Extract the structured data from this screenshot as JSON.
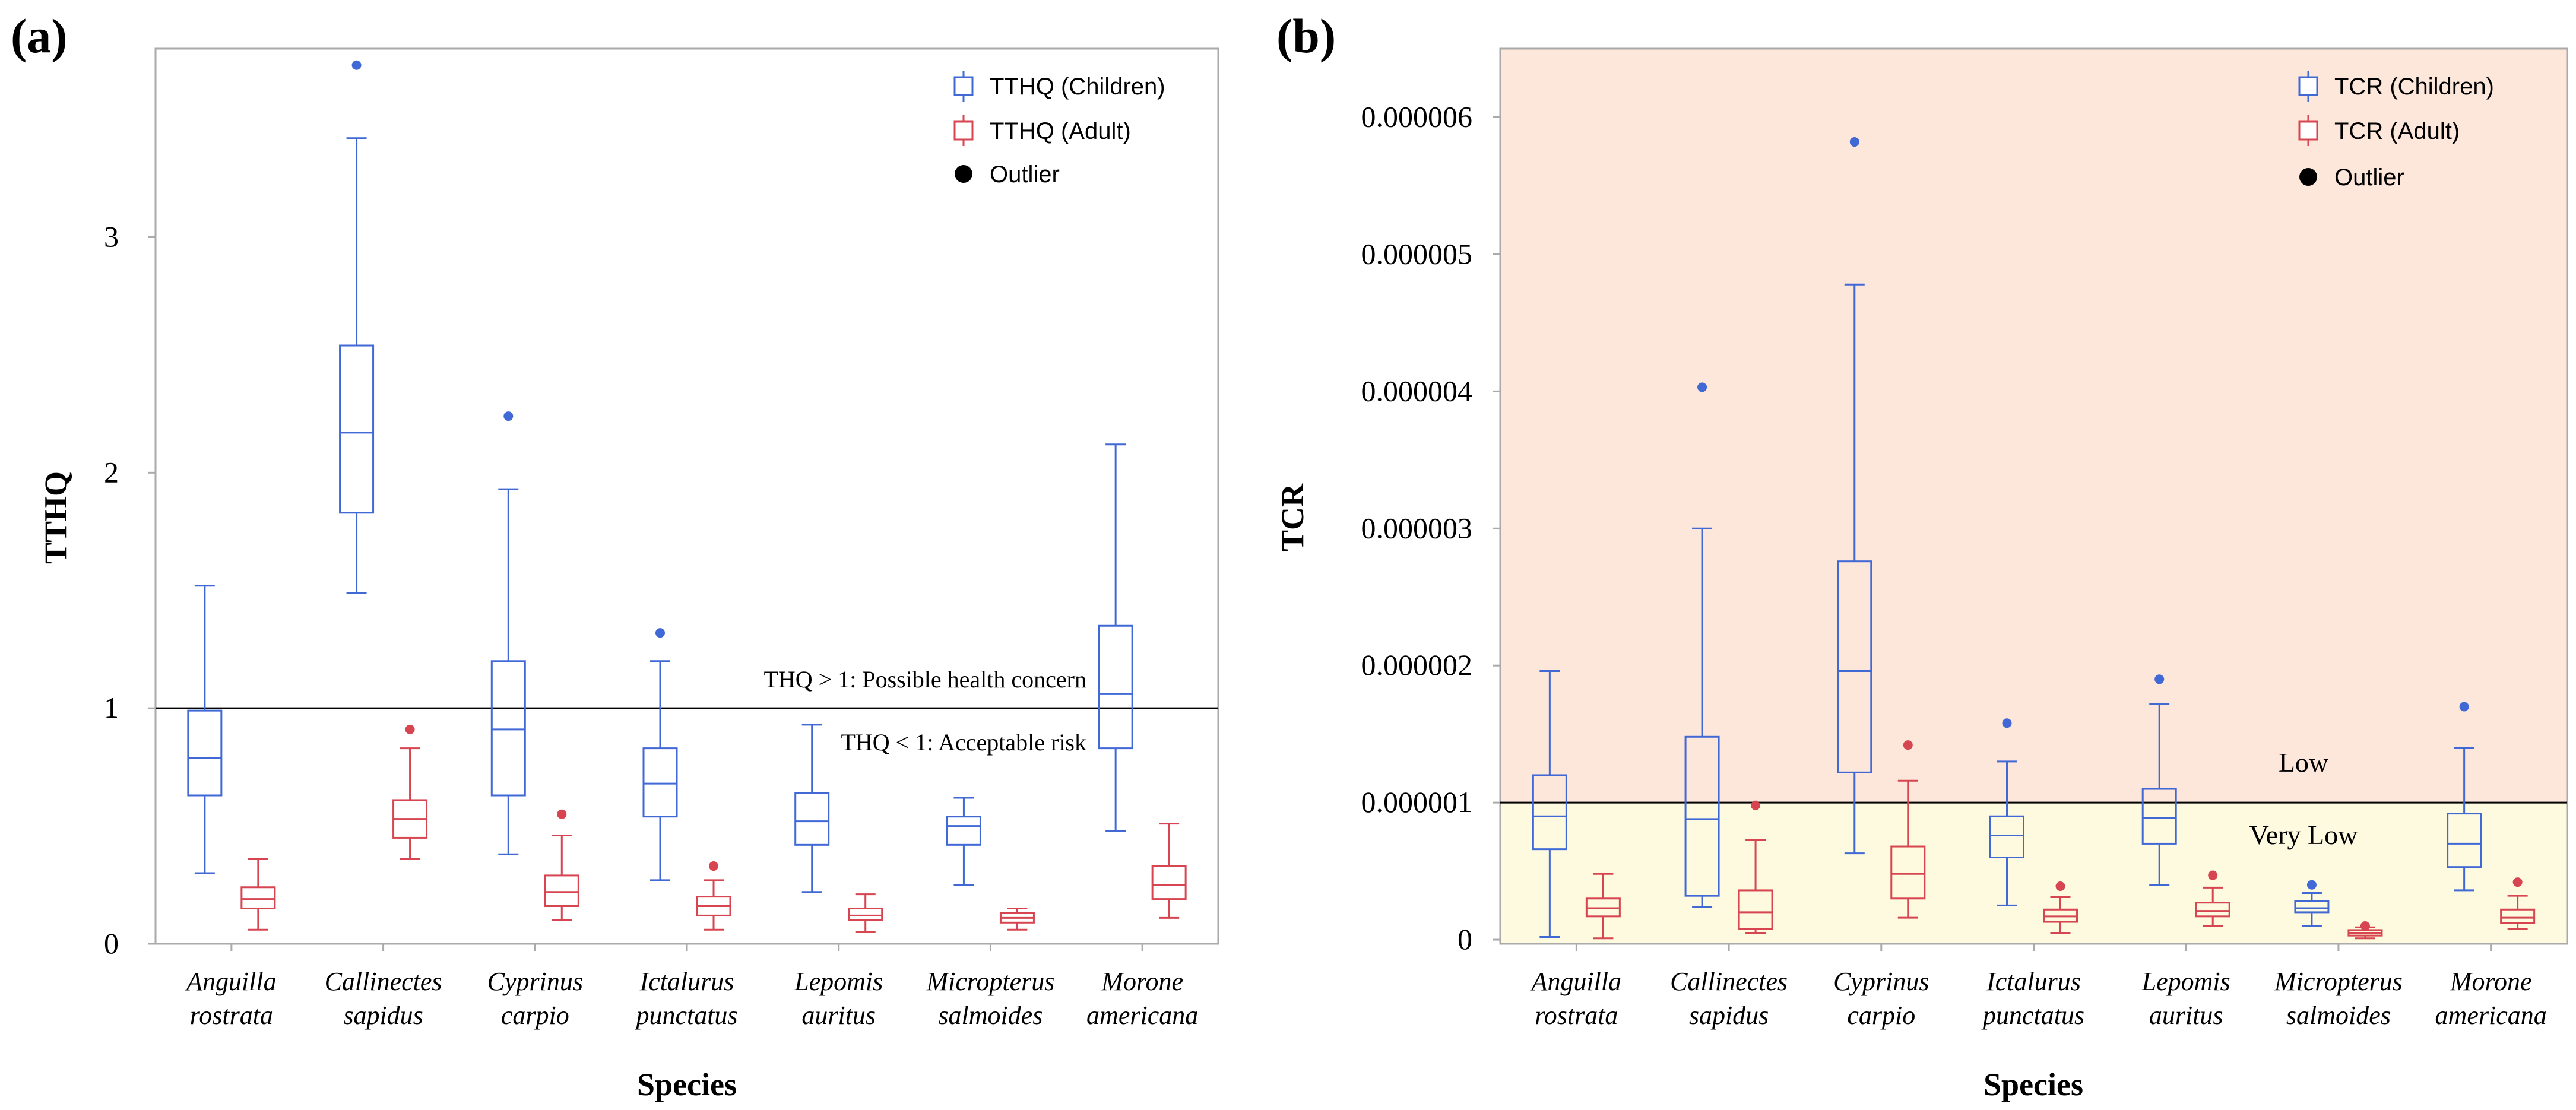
{
  "chart_data": [
    {
      "panel_label": "(a)",
      "type": "box",
      "ylabel": "TTHQ",
      "xlabel": "Species",
      "ylim": [
        0,
        3.8
      ],
      "yticks": [
        {
          "value": 0,
          "label": "0"
        },
        {
          "value": 1,
          "label": "1"
        },
        {
          "value": 2,
          "label": "2"
        },
        {
          "value": 3,
          "label": "3"
        }
      ],
      "categories": [
        {
          "line1": "Anguilla",
          "line2": "rostrata"
        },
        {
          "line1": "Callinectes",
          "line2": "sapidus"
        },
        {
          "line1": "Cyprinus",
          "line2": "carpio"
        },
        {
          "line1": "Ictalurus",
          "line2": "punctatus"
        },
        {
          "line1": "Lepomis",
          "line2": "auritus"
        },
        {
          "line1": "Micropterus",
          "line2": "salmoides"
        },
        {
          "line1": "Morone",
          "line2": "americana"
        }
      ],
      "series": [
        {
          "name": "TTHQ (Children)",
          "color": "#4169d6",
          "boxes": [
            {
              "whisker_low": 0.3,
              "q1": 0.63,
              "median": 0.79,
              "q3": 0.99,
              "whisker_high": 1.52,
              "outliers": []
            },
            {
              "whisker_low": 1.49,
              "q1": 1.83,
              "median": 2.17,
              "q3": 2.54,
              "whisker_high": 3.42,
              "outliers": [
                3.73
              ]
            },
            {
              "whisker_low": 0.38,
              "q1": 0.63,
              "median": 0.91,
              "q3": 1.2,
              "whisker_high": 1.93,
              "outliers": [
                2.24
              ]
            },
            {
              "whisker_low": 0.27,
              "q1": 0.54,
              "median": 0.68,
              "q3": 0.83,
              "whisker_high": 1.2,
              "outliers": [
                1.32
              ]
            },
            {
              "whisker_low": 0.22,
              "q1": 0.42,
              "median": 0.52,
              "q3": 0.64,
              "whisker_high": 0.93,
              "outliers": []
            },
            {
              "whisker_low": 0.25,
              "q1": 0.42,
              "median": 0.5,
              "q3": 0.54,
              "whisker_high": 0.62,
              "outliers": []
            },
            {
              "whisker_low": 0.48,
              "q1": 0.83,
              "median": 1.06,
              "q3": 1.35,
              "whisker_high": 2.12,
              "outliers": []
            }
          ]
        },
        {
          "name": "TTHQ (Adult)",
          "color": "#d64550",
          "boxes": [
            {
              "whisker_low": 0.06,
              "q1": 0.15,
              "median": 0.19,
              "q3": 0.24,
              "whisker_high": 0.36,
              "outliers": []
            },
            {
              "whisker_low": 0.36,
              "q1": 0.45,
              "median": 0.53,
              "q3": 0.61,
              "whisker_high": 0.83,
              "outliers": [
                0.91
              ]
            },
            {
              "whisker_low": 0.1,
              "q1": 0.16,
              "median": 0.22,
              "q3": 0.29,
              "whisker_high": 0.46,
              "outliers": [
                0.55
              ]
            },
            {
              "whisker_low": 0.06,
              "q1": 0.12,
              "median": 0.16,
              "q3": 0.2,
              "whisker_high": 0.27,
              "outliers": [
                0.33
              ]
            },
            {
              "whisker_low": 0.05,
              "q1": 0.1,
              "median": 0.12,
              "q3": 0.15,
              "whisker_high": 0.21,
              "outliers": []
            },
            {
              "whisker_low": 0.06,
              "q1": 0.09,
              "median": 0.11,
              "q3": 0.13,
              "whisker_high": 0.15,
              "outliers": []
            },
            {
              "whisker_low": 0.11,
              "q1": 0.19,
              "median": 0.25,
              "q3": 0.33,
              "whisker_high": 0.51,
              "outliers": []
            }
          ]
        }
      ],
      "legend": {
        "position": "top-right",
        "items": [
          {
            "kind": "box",
            "label": "TTHQ (Children)",
            "color": "#4169d6"
          },
          {
            "kind": "box",
            "label": "TTHQ (Adult)",
            "color": "#d64550"
          },
          {
            "kind": "dot",
            "label": "Outlier",
            "color": "#000000"
          }
        ]
      },
      "reference_line": {
        "value": 1,
        "color": "#000000"
      },
      "annotations": [
        {
          "text": "THQ > 1: Possible health concern",
          "placement": "above reference line, right"
        },
        {
          "text": "THQ < 1: Acceptable risk",
          "placement": "below reference line, right"
        }
      ]
    },
    {
      "panel_label": "(b)",
      "type": "box",
      "ylabel": "TCR",
      "xlabel": "Species",
      "ylim": [
        -3e-08,
        6.5e-06
      ],
      "yticks": [
        {
          "value": 0,
          "label": "0"
        },
        {
          "value": 1e-06,
          "label": "0.000001"
        },
        {
          "value": 2e-06,
          "label": "0.000002"
        },
        {
          "value": 3e-06,
          "label": "0.000003"
        },
        {
          "value": 4e-06,
          "label": "0.000004"
        },
        {
          "value": 5e-06,
          "label": "0.000005"
        },
        {
          "value": 6e-06,
          "label": "0.000006"
        }
      ],
      "categories": [
        {
          "line1": "Anguilla",
          "line2": "rostrata"
        },
        {
          "line1": "Callinectes",
          "line2": "sapidus"
        },
        {
          "line1": "Cyprinus",
          "line2": "carpio"
        },
        {
          "line1": "Ictalurus",
          "line2": "punctatus"
        },
        {
          "line1": "Lepomis",
          "line2": "auritus"
        },
        {
          "line1": "Micropterus",
          "line2": "salmoides"
        },
        {
          "line1": "Morone",
          "line2": "americana"
        }
      ],
      "series": [
        {
          "name": "TCR (Children)",
          "color": "#4169d6",
          "boxes": [
            {
              "whisker_low": 2e-08,
              "q1": 6.6e-07,
              "median": 9e-07,
              "q3": 1.2e-06,
              "whisker_high": 1.96e-06,
              "outliers": []
            },
            {
              "whisker_low": 2.4e-07,
              "q1": 3.2e-07,
              "median": 8.8e-07,
              "q3": 1.48e-06,
              "whisker_high": 3e-06,
              "outliers": [
                4.03e-06
              ]
            },
            {
              "whisker_low": 6.3e-07,
              "q1": 1.22e-06,
              "median": 1.96e-06,
              "q3": 2.76e-06,
              "whisker_high": 4.78e-06,
              "outliers": [
                5.82e-06
              ]
            },
            {
              "whisker_low": 2.5e-07,
              "q1": 6e-07,
              "median": 7.6e-07,
              "q3": 9e-07,
              "whisker_high": 1.3e-06,
              "outliers": [
                1.58e-06
              ]
            },
            {
              "whisker_low": 4e-07,
              "q1": 7e-07,
              "median": 8.9e-07,
              "q3": 1.1e-06,
              "whisker_high": 1.72e-06,
              "outliers": [
                1.9e-06
              ]
            },
            {
              "whisker_low": 1e-07,
              "q1": 2e-07,
              "median": 2.3e-07,
              "q3": 2.8e-07,
              "whisker_high": 3.4e-07,
              "outliers": [
                4e-07
              ]
            },
            {
              "whisker_low": 3.6e-07,
              "q1": 5.3e-07,
              "median": 7e-07,
              "q3": 9.2e-07,
              "whisker_high": 1.4e-06,
              "outliers": [
                1.7e-06
              ]
            }
          ]
        },
        {
          "name": "TCR (Adult)",
          "color": "#d64550",
          "boxes": [
            {
              "whisker_low": 1e-08,
              "q1": 1.7e-07,
              "median": 2.3e-07,
              "q3": 3e-07,
              "whisker_high": 4.8e-07,
              "outliers": []
            },
            {
              "whisker_low": 5e-08,
              "q1": 8e-08,
              "median": 2e-07,
              "q3": 3.6e-07,
              "whisker_high": 7.3e-07,
              "outliers": [
                9.8e-07
              ]
            },
            {
              "whisker_low": 1.6e-07,
              "q1": 3e-07,
              "median": 4.8e-07,
              "q3": 6.8e-07,
              "whisker_high": 1.16e-06,
              "outliers": [
                1.42e-06
              ]
            },
            {
              "whisker_low": 5e-08,
              "q1": 1.3e-07,
              "median": 1.7e-07,
              "q3": 2.2e-07,
              "whisker_high": 3.1e-07,
              "outliers": [
                3.9e-07
              ]
            },
            {
              "whisker_low": 1e-07,
              "q1": 1.7e-07,
              "median": 2.1e-07,
              "q3": 2.7e-07,
              "whisker_high": 3.8e-07,
              "outliers": [
                4.7e-07
              ]
            },
            {
              "whisker_low": 1e-08,
              "q1": 3e-08,
              "median": 5e-08,
              "q3": 7e-08,
              "whisker_high": 9e-08,
              "outliers": [
                1e-07
              ]
            },
            {
              "whisker_low": 8e-08,
              "q1": 1.2e-07,
              "median": 1.6e-07,
              "q3": 2.2e-07,
              "whisker_high": 3.2e-07,
              "outliers": [
                4.2e-07
              ]
            }
          ]
        }
      ],
      "legend": {
        "position": "top-right",
        "items": [
          {
            "kind": "box",
            "label": "TCR (Children)",
            "color": "#4169d6"
          },
          {
            "kind": "box",
            "label": "TCR (Adult)",
            "color": "#d64550"
          },
          {
            "kind": "dot",
            "label": "Outlier",
            "color": "#000000"
          }
        ]
      },
      "zones": [
        {
          "label": "Low",
          "from": 1e-06,
          "to": 6.5e-06,
          "color": "#fde6da"
        },
        {
          "label": "Very Low",
          "from": -3e-08,
          "to": 1e-06,
          "color": "#fdfae0"
        }
      ],
      "zone_boundary": {
        "value": 1e-06,
        "color": "#000000"
      }
    }
  ]
}
